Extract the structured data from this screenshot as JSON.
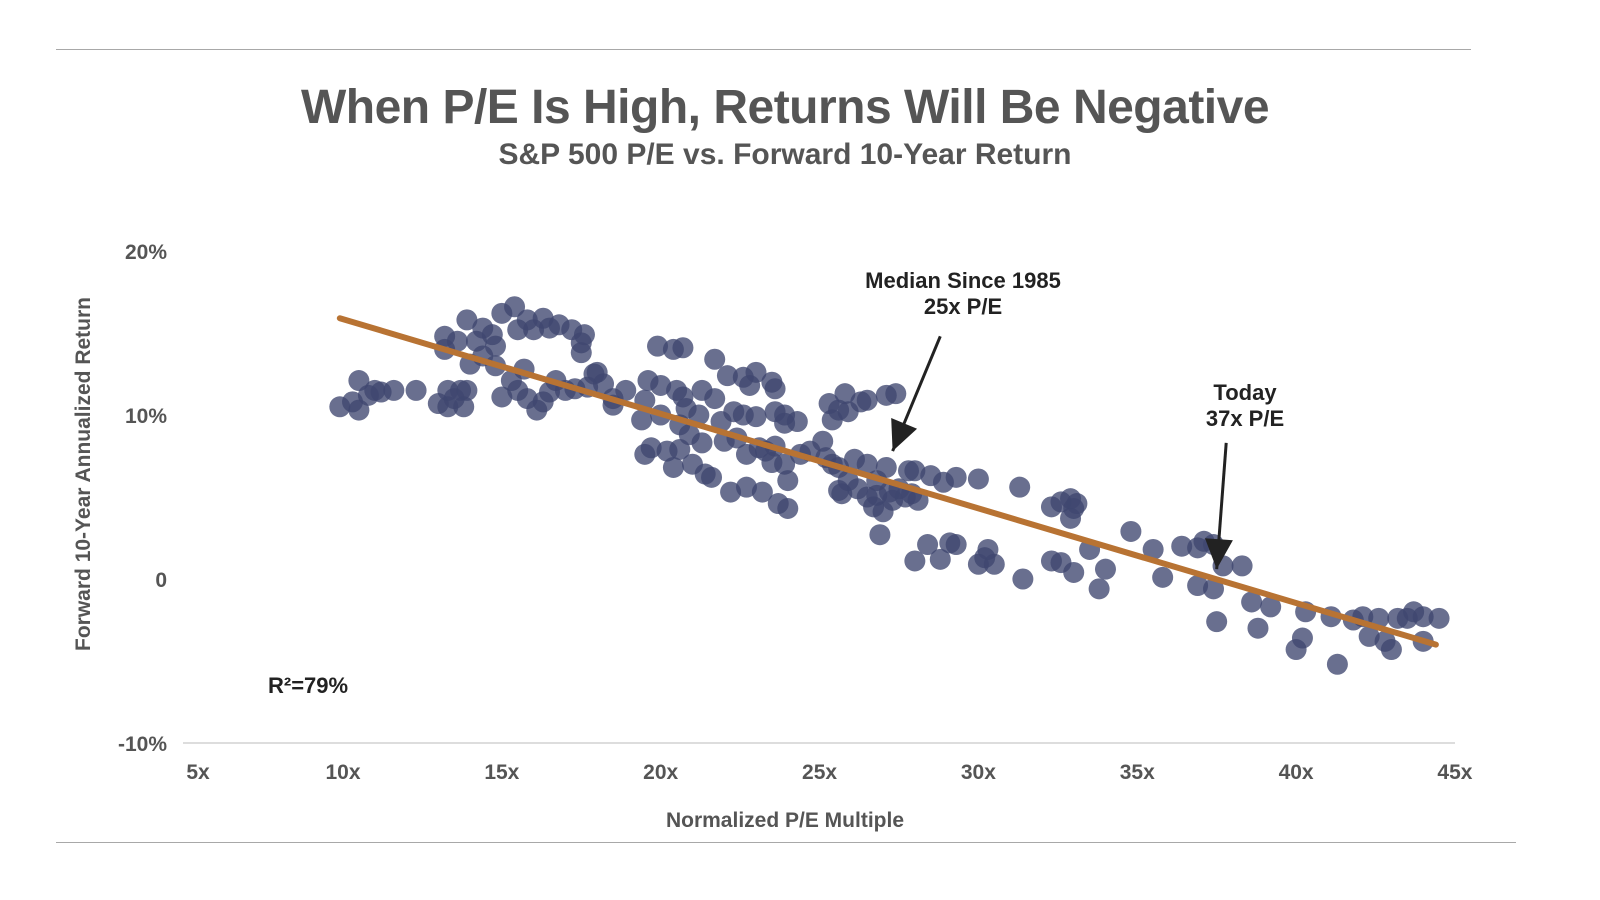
{
  "header": {
    "title": "When P/E Is High, Returns Will Be Negative",
    "subtitle": "S&P 500 P/E vs. Forward 10-Year Return"
  },
  "colors": {
    "points": "#3f4770",
    "trendline": "#b87333",
    "text": "#555555",
    "annotation": "#222222",
    "rule": "#a8a8a8",
    "axis": "#dddddd"
  },
  "chart_data": {
    "type": "scatter",
    "title": "When P/E Is High, Returns Will Be Negative",
    "subtitle": "S&P 500 P/E vs. Forward 10-Year Return",
    "xlabel": "Normalized P/E Multiple",
    "ylabel": "Forward 10-Year Annualized Return",
    "xlim": [
      5,
      45
    ],
    "ylim": [
      -10,
      20
    ],
    "x_ticks": [
      5,
      10,
      15,
      20,
      25,
      30,
      35,
      40,
      45
    ],
    "x_tick_labels": [
      "5x",
      "10x",
      "15x",
      "20x",
      "25x",
      "30x",
      "35x",
      "40x",
      "45x"
    ],
    "y_ticks": [
      20,
      10,
      0,
      -10
    ],
    "y_tick_labels": [
      "20%",
      "10%",
      "0",
      "-10%"
    ],
    "grid": false,
    "legend": "none",
    "r_squared_label": "R²=79%",
    "trendline": {
      "x": [
        9.9,
        44.4
      ],
      "y": [
        15.9,
        -4.0
      ]
    },
    "annotations": [
      {
        "lines": [
          "Median Since 1985",
          "25x P/E"
        ],
        "target": [
          27.3,
          7.8
        ],
        "from": [
          28.8,
          14.8
        ]
      },
      {
        "lines": [
          "Today",
          "37x P/E"
        ],
        "target": [
          37.5,
          0.6
        ],
        "from": [
          37.8,
          8.3
        ]
      }
    ],
    "series": [
      {
        "name": "S&P 500 observations",
        "points": [
          [
            9.9,
            10.5
          ],
          [
            10.3,
            10.8
          ],
          [
            10.5,
            12.1
          ],
          [
            10.5,
            10.3
          ],
          [
            10.8,
            11.2
          ],
          [
            11.0,
            11.5
          ],
          [
            11.2,
            11.4
          ],
          [
            11.6,
            11.5
          ],
          [
            12.3,
            11.5
          ],
          [
            13.0,
            10.7
          ],
          [
            13.3,
            11.5
          ],
          [
            13.3,
            10.5
          ],
          [
            13.5,
            11.0
          ],
          [
            13.7,
            11.5
          ],
          [
            13.8,
            10.5
          ],
          [
            13.9,
            11.5
          ],
          [
            13.2,
            14.0
          ],
          [
            13.2,
            14.8
          ],
          [
            13.6,
            14.5
          ],
          [
            13.9,
            15.8
          ],
          [
            14.0,
            13.1
          ],
          [
            14.2,
            14.5
          ],
          [
            14.4,
            15.3
          ],
          [
            14.7,
            14.9
          ],
          [
            14.8,
            14.2
          ],
          [
            15.0,
            16.2
          ],
          [
            15.4,
            16.6
          ],
          [
            15.5,
            15.2
          ],
          [
            15.8,
            15.8
          ],
          [
            16.0,
            15.2
          ],
          [
            16.3,
            15.9
          ],
          [
            16.5,
            15.3
          ],
          [
            16.8,
            15.5
          ],
          [
            17.2,
            15.2
          ],
          [
            17.5,
            14.4
          ],
          [
            17.5,
            13.8
          ],
          [
            17.6,
            14.9
          ],
          [
            14.4,
            13.6
          ],
          [
            14.8,
            13.0
          ],
          [
            15.0,
            11.1
          ],
          [
            15.3,
            12.1
          ],
          [
            15.7,
            12.8
          ],
          [
            15.5,
            11.5
          ],
          [
            15.8,
            11.0
          ],
          [
            16.1,
            10.3
          ],
          [
            16.3,
            10.8
          ],
          [
            16.5,
            11.4
          ],
          [
            16.7,
            12.1
          ],
          [
            17.0,
            11.5
          ],
          [
            17.3,
            11.6
          ],
          [
            17.7,
            11.7
          ],
          [
            17.9,
            12.5
          ],
          [
            18.0,
            12.6
          ],
          [
            18.2,
            11.9
          ],
          [
            18.5,
            11.0
          ],
          [
            18.5,
            10.6
          ],
          [
            18.9,
            11.5
          ],
          [
            19.4,
            9.7
          ],
          [
            19.5,
            10.9
          ],
          [
            19.6,
            12.1
          ],
          [
            19.5,
            7.6
          ],
          [
            19.7,
            8.0
          ],
          [
            19.9,
            14.2
          ],
          [
            20.0,
            11.8
          ],
          [
            20.0,
            10.0
          ],
          [
            20.2,
            7.8
          ],
          [
            20.4,
            14.0
          ],
          [
            20.5,
            11.5
          ],
          [
            20.7,
            14.1
          ],
          [
            20.7,
            11.1
          ],
          [
            20.6,
            9.4
          ],
          [
            20.6,
            7.9
          ],
          [
            20.4,
            6.8
          ],
          [
            20.8,
            10.4
          ],
          [
            20.9,
            8.8
          ],
          [
            21.0,
            7.0
          ],
          [
            21.2,
            10.0
          ],
          [
            21.3,
            11.5
          ],
          [
            21.3,
            8.3
          ],
          [
            21.4,
            6.4
          ],
          [
            21.6,
            6.2
          ],
          [
            21.7,
            13.4
          ],
          [
            21.7,
            11.0
          ],
          [
            21.9,
            9.6
          ],
          [
            22.0,
            8.4
          ],
          [
            22.1,
            12.4
          ],
          [
            22.3,
            10.2
          ],
          [
            22.2,
            5.3
          ],
          [
            22.4,
            8.6
          ],
          [
            22.6,
            12.3
          ],
          [
            22.6,
            10.0
          ],
          [
            22.7,
            7.6
          ],
          [
            22.8,
            11.8
          ],
          [
            22.7,
            5.6
          ],
          [
            23.0,
            12.6
          ],
          [
            23.0,
            9.9
          ],
          [
            23.1,
            8.0
          ],
          [
            23.3,
            7.8
          ],
          [
            23.2,
            5.3
          ],
          [
            23.5,
            12.0
          ],
          [
            23.6,
            11.6
          ],
          [
            23.6,
            10.2
          ],
          [
            23.6,
            8.1
          ],
          [
            23.5,
            7.1
          ],
          [
            23.7,
            4.6
          ],
          [
            23.9,
            10.0
          ],
          [
            23.9,
            9.5
          ],
          [
            23.9,
            7.0
          ],
          [
            24.0,
            6.0
          ],
          [
            24.0,
            4.3
          ],
          [
            24.3,
            9.6
          ],
          [
            24.4,
            7.6
          ],
          [
            24.7,
            7.8
          ],
          [
            25.3,
            10.7
          ],
          [
            25.4,
            9.7
          ],
          [
            25.6,
            10.3
          ],
          [
            25.8,
            11.3
          ],
          [
            25.9,
            10.2
          ],
          [
            26.3,
            10.8
          ],
          [
            26.5,
            10.9
          ],
          [
            27.1,
            11.2
          ],
          [
            27.4,
            11.3
          ],
          [
            25.1,
            8.4
          ],
          [
            25.2,
            7.4
          ],
          [
            25.4,
            7.0
          ],
          [
            25.6,
            6.8
          ],
          [
            25.6,
            5.4
          ],
          [
            25.7,
            5.2
          ],
          [
            25.9,
            6.0
          ],
          [
            26.1,
            7.3
          ],
          [
            26.2,
            5.5
          ],
          [
            26.5,
            7.0
          ],
          [
            26.5,
            5.0
          ],
          [
            26.7,
            4.4
          ],
          [
            26.8,
            6.0
          ],
          [
            26.8,
            5.1
          ],
          [
            26.9,
            2.7
          ],
          [
            27.0,
            4.1
          ],
          [
            27.1,
            6.8
          ],
          [
            27.2,
            5.3
          ],
          [
            27.3,
            4.8
          ],
          [
            27.5,
            5.5
          ],
          [
            27.7,
            5.0
          ],
          [
            27.9,
            5.2
          ],
          [
            28.1,
            4.8
          ],
          [
            27.8,
            6.6
          ],
          [
            28.0,
            6.6
          ],
          [
            28.5,
            6.3
          ],
          [
            28.9,
            5.9
          ],
          [
            29.3,
            6.2
          ],
          [
            30.0,
            6.1
          ],
          [
            31.3,
            5.6
          ],
          [
            28.0,
            1.1
          ],
          [
            28.4,
            2.1
          ],
          [
            28.8,
            1.2
          ],
          [
            29.1,
            2.2
          ],
          [
            29.3,
            2.1
          ],
          [
            30.0,
            0.9
          ],
          [
            30.2,
            1.3
          ],
          [
            30.3,
            1.8
          ],
          [
            30.5,
            0.9
          ],
          [
            31.4,
            0.0
          ],
          [
            32.3,
            4.4
          ],
          [
            32.6,
            4.7
          ],
          [
            32.9,
            4.9
          ],
          [
            32.9,
            3.7
          ],
          [
            33.0,
            4.3
          ],
          [
            33.1,
            4.6
          ],
          [
            32.3,
            1.1
          ],
          [
            32.6,
            1.0
          ],
          [
            33.0,
            0.4
          ],
          [
            33.5,
            1.8
          ],
          [
            33.8,
            -0.6
          ],
          [
            34.0,
            0.6
          ],
          [
            34.8,
            2.9
          ],
          [
            35.5,
            1.8
          ],
          [
            35.8,
            0.1
          ],
          [
            36.4,
            2.0
          ],
          [
            36.9,
            1.9
          ],
          [
            37.1,
            2.3
          ],
          [
            37.4,
            2.1
          ],
          [
            37.7,
            0.8
          ],
          [
            36.9,
            -0.4
          ],
          [
            37.4,
            -0.6
          ],
          [
            37.5,
            -2.6
          ],
          [
            38.3,
            0.8
          ],
          [
            38.6,
            -1.4
          ],
          [
            38.8,
            -3.0
          ],
          [
            39.2,
            -1.7
          ],
          [
            40.0,
            -4.3
          ],
          [
            40.2,
            -3.6
          ],
          [
            40.3,
            -2.0
          ],
          [
            41.1,
            -2.3
          ],
          [
            41.3,
            -5.2
          ],
          [
            41.8,
            -2.5
          ],
          [
            42.1,
            -2.3
          ],
          [
            42.3,
            -3.5
          ],
          [
            42.6,
            -2.4
          ],
          [
            42.8,
            -3.8
          ],
          [
            43.0,
            -4.3
          ],
          [
            43.2,
            -2.4
          ],
          [
            43.5,
            -2.4
          ],
          [
            43.7,
            -2.0
          ],
          [
            44.0,
            -2.3
          ],
          [
            44.0,
            -3.8
          ],
          [
            44.5,
            -2.4
          ]
        ]
      }
    ]
  }
}
